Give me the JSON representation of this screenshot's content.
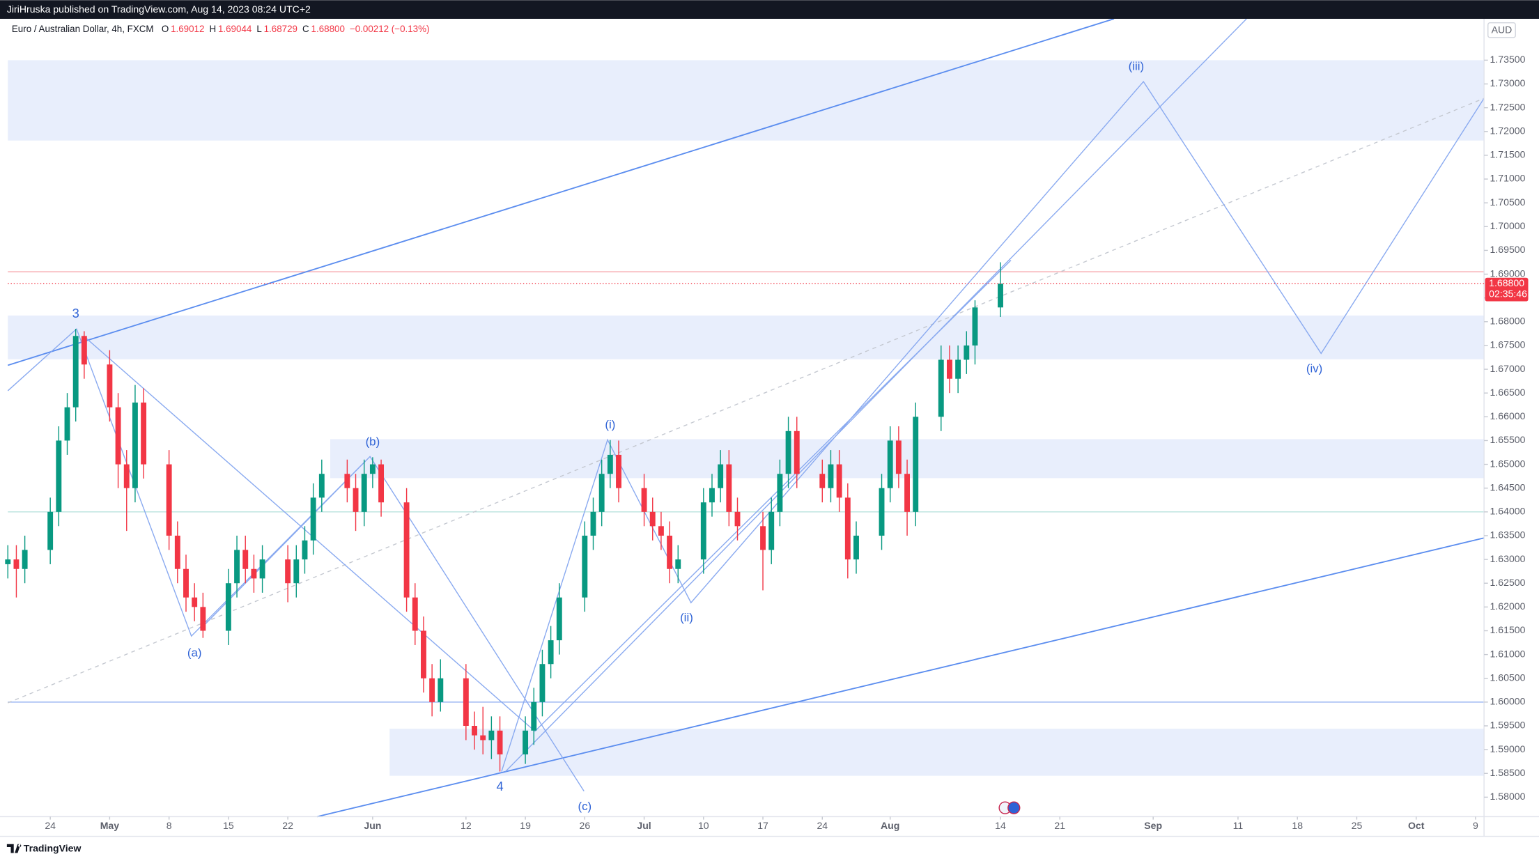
{
  "header": {
    "publisher": "JiriHruska published on TradingView.com, Aug 14, 2023 08:24 UTC+2",
    "brand": "TradingView"
  },
  "chart_data": {
    "type": "candlestick",
    "symbol": "Euro / Australian Dollar, 4h, FXCM",
    "ohlc_legend": {
      "open_label": "O",
      "open": 1.69012,
      "high_label": "H",
      "high": 1.69044,
      "low_label": "L",
      "low": 1.68729,
      "close_label": "C",
      "close": {
        "value": 1.688,
        "label": "1.68800"
      },
      "change": "−0.00212 (−0.13%)"
    },
    "currency": "AUD",
    "last_price": {
      "value": 1.688,
      "label": "1.68800"
    },
    "countdown": "02:35:46",
    "up_color": "#089981",
    "down_color": "#f23645",
    "xlim": [
      "2023-04-19",
      "2023-10-10"
    ],
    "ylim": [
      1.5759,
      1.7437
    ],
    "grid": false,
    "xticks": [
      {
        "value": "2023-04-24",
        "label": "24"
      },
      {
        "value": "2023-05-01",
        "label": "May"
      },
      {
        "value": "2023-05-08",
        "label": "8"
      },
      {
        "value": "2023-05-15",
        "label": "15"
      },
      {
        "value": "2023-05-22",
        "label": "22"
      },
      {
        "value": "2023-06-01",
        "label": "Jun"
      },
      {
        "value": "2023-06-12",
        "label": "12"
      },
      {
        "value": "2023-06-19",
        "label": "19"
      },
      {
        "value": "2023-06-26",
        "label": "26"
      },
      {
        "value": "2023-07-03",
        "label": "Jul"
      },
      {
        "value": "2023-07-10",
        "label": "10"
      },
      {
        "value": "2023-07-17",
        "label": "17"
      },
      {
        "value": "2023-07-24",
        "label": "24"
      },
      {
        "value": "2023-08-01",
        "label": "Aug"
      },
      {
        "value": "2023-08-14",
        "label": "14"
      },
      {
        "value": "2023-08-21",
        "label": "21"
      },
      {
        "value": "2023-09-01",
        "label": "Sep"
      },
      {
        "value": "2023-09-11",
        "label": "11"
      },
      {
        "value": "2023-09-18",
        "label": "18"
      },
      {
        "value": "2023-09-25",
        "label": "25"
      },
      {
        "value": "2023-10-02",
        "label": "Oct"
      },
      {
        "value": "2023-10-09",
        "label": "9"
      }
    ],
    "yticks": [
      {
        "value": 1.58,
        "label": "1.58000"
      },
      {
        "value": 1.585,
        "label": "1.58500"
      },
      {
        "value": 1.59,
        "label": "1.59000"
      },
      {
        "value": 1.595,
        "label": "1.59500"
      },
      {
        "value": 1.6,
        "label": "1.60000"
      },
      {
        "value": 1.605,
        "label": "1.60500"
      },
      {
        "value": 1.61,
        "label": "1.61000"
      },
      {
        "value": 1.615,
        "label": "1.61500"
      },
      {
        "value": 1.62,
        "label": "1.62000"
      },
      {
        "value": 1.625,
        "label": "1.62500"
      },
      {
        "value": 1.63,
        "label": "1.63000"
      },
      {
        "value": 1.635,
        "label": "1.63500"
      },
      {
        "value": 1.64,
        "label": "1.64000"
      },
      {
        "value": 1.645,
        "label": "1.64500"
      },
      {
        "value": 1.65,
        "label": "1.65000"
      },
      {
        "value": 1.655,
        "label": "1.65500"
      },
      {
        "value": 1.66,
        "label": "1.66000"
      },
      {
        "value": 1.665,
        "label": "1.66500"
      },
      {
        "value": 1.67,
        "label": "1.67000"
      },
      {
        "value": 1.675,
        "label": "1.67500"
      },
      {
        "value": 1.68,
        "label": "1.68000"
      },
      {
        "value": 1.685,
        "label": "1.68500"
      },
      {
        "value": 1.69,
        "label": "1.69000"
      },
      {
        "value": 1.695,
        "label": "1.69500"
      },
      {
        "value": 1.7,
        "label": "1.70000"
      },
      {
        "value": 1.705,
        "label": "1.70500"
      },
      {
        "value": 1.71,
        "label": "1.71000"
      },
      {
        "value": 1.715,
        "label": "1.71500"
      },
      {
        "value": 1.72,
        "label": "1.72000"
      },
      {
        "value": 1.725,
        "label": "1.72500"
      },
      {
        "value": 1.73,
        "label": "1.73000"
      },
      {
        "value": 1.735,
        "label": "1.73500"
      }
    ],
    "zones": [
      {
        "low": 1.7181,
        "high": 1.735
      },
      {
        "low": 1.6721,
        "high": 1.6813
      },
      {
        "low": 1.6471,
        "high": 1.6553,
        "from": "2023-05-27"
      },
      {
        "low": 1.5845,
        "high": 1.5944,
        "from": "2023-06-03"
      }
    ],
    "zone_color": "#e8eefc",
    "levels": [
      {
        "value": 1.6,
        "color": "#9db7f2"
      },
      {
        "value": 1.64,
        "color": "#b9e2dd"
      },
      {
        "value": 1.6905,
        "color": "#f7b0b5"
      }
    ],
    "annotations": [
      {
        "text": "3",
        "x": "2023-04-27",
        "y": 1.6785,
        "pos": "above"
      },
      {
        "text": "(a)",
        "x": "2023-05-11",
        "y": 1.6135,
        "pos": "below"
      },
      {
        "text": "(b)",
        "x": "2023-06-01",
        "y": 1.6515,
        "pos": "above"
      },
      {
        "text": "4",
        "x": "2023-06-16",
        "y": 1.5854,
        "pos": "below"
      },
      {
        "text": "(c)",
        "x": "2023-06-26",
        "y": 1.5812,
        "pos": "below"
      },
      {
        "text": "(i)",
        "x": "2023-06-29",
        "y": 1.6551,
        "pos": "above"
      },
      {
        "text": "(ii)",
        "x": "2023-07-08",
        "y": 1.6209,
        "pos": "below"
      },
      {
        "text": "(iii)",
        "x": "2023-08-30",
        "y": 1.7305,
        "pos": "above"
      },
      {
        "text": "(iv)",
        "x": "2023-09-20",
        "y": 1.6733,
        "pos": "below"
      }
    ],
    "candles": [
      [
        "2023-04-19",
        1.629,
        1.633,
        1.626,
        1.63
      ],
      [
        "2023-04-20",
        1.63,
        1.633,
        1.622,
        1.628
      ],
      [
        "2023-04-21",
        1.628,
        1.635,
        1.625,
        1.632
      ],
      [
        "2023-04-24",
        1.632,
        1.643,
        1.629,
        1.64
      ],
      [
        "2023-04-25",
        1.64,
        1.658,
        1.637,
        1.655
      ],
      [
        "2023-04-26",
        1.655,
        1.665,
        1.652,
        1.662
      ],
      [
        "2023-04-27",
        1.662,
        1.6785,
        1.659,
        1.677
      ],
      [
        "2023-04-28",
        1.677,
        1.678,
        1.668,
        1.671
      ],
      [
        "2023-05-01",
        1.671,
        1.674,
        1.659,
        1.662
      ],
      [
        "2023-05-02",
        1.662,
        1.665,
        1.645,
        1.65
      ],
      [
        "2023-05-03",
        1.65,
        1.653,
        1.636,
        1.645
      ],
      [
        "2023-05-04",
        1.645,
        1.6667,
        1.642,
        1.663
      ],
      [
        "2023-05-05",
        1.663,
        1.666,
        1.647,
        1.65
      ],
      [
        "2023-05-08",
        1.65,
        1.653,
        1.632,
        1.635
      ],
      [
        "2023-05-09",
        1.635,
        1.638,
        1.625,
        1.628
      ],
      [
        "2023-05-10",
        1.628,
        1.631,
        1.619,
        1.622
      ],
      [
        "2023-05-11",
        1.622,
        1.625,
        1.617,
        1.62
      ],
      [
        "2023-05-12",
        1.62,
        1.623,
        1.6135,
        1.615
      ],
      [
        "2023-05-15",
        1.615,
        1.628,
        1.612,
        1.625
      ],
      [
        "2023-05-16",
        1.625,
        1.635,
        1.622,
        1.632
      ],
      [
        "2023-05-17",
        1.632,
        1.635,
        1.625,
        1.628
      ],
      [
        "2023-05-18",
        1.628,
        1.631,
        1.623,
        1.626
      ],
      [
        "2023-05-19",
        1.626,
        1.633,
        1.623,
        1.63
      ],
      [
        "2023-05-22",
        1.63,
        1.633,
        1.621,
        1.625
      ],
      [
        "2023-05-23",
        1.625,
        1.633,
        1.622,
        1.63
      ],
      [
        "2023-05-24",
        1.63,
        1.637,
        1.627,
        1.634
      ],
      [
        "2023-05-25",
        1.634,
        1.646,
        1.631,
        1.643
      ],
      [
        "2023-05-26",
        1.643,
        1.651,
        1.64,
        1.648
      ],
      [
        "2023-05-29",
        1.648,
        1.651,
        1.642,
        1.645
      ],
      [
        "2023-05-30",
        1.645,
        1.648,
        1.636,
        1.64
      ],
      [
        "2023-05-31",
        1.64,
        1.651,
        1.637,
        1.648
      ],
      [
        "2023-06-01",
        1.648,
        1.6515,
        1.645,
        1.65
      ],
      [
        "2023-06-02",
        1.65,
        1.651,
        1.639,
        1.642
      ],
      [
        "2023-06-05",
        1.642,
        1.645,
        1.619,
        1.622
      ],
      [
        "2023-06-06",
        1.622,
        1.625,
        1.612,
        1.615
      ],
      [
        "2023-06-07",
        1.615,
        1.618,
        1.602,
        1.605
      ],
      [
        "2023-06-08",
        1.605,
        1.608,
        1.597,
        1.6
      ],
      [
        "2023-06-09",
        1.6,
        1.609,
        1.598,
        1.605
      ],
      [
        "2023-06-12",
        1.605,
        1.608,
        1.592,
        1.595
      ],
      [
        "2023-06-13",
        1.595,
        1.598,
        1.59,
        1.593
      ],
      [
        "2023-06-14",
        1.593,
        1.599,
        1.589,
        1.592
      ],
      [
        "2023-06-15",
        1.592,
        1.597,
        1.588,
        1.594
      ],
      [
        "2023-06-16",
        1.594,
        1.597,
        1.5854,
        1.589
      ],
      [
        "2023-06-19",
        1.589,
        1.597,
        1.587,
        1.594
      ],
      [
        "2023-06-20",
        1.594,
        1.603,
        1.591,
        1.6
      ],
      [
        "2023-06-21",
        1.6,
        1.611,
        1.597,
        1.608
      ],
      [
        "2023-06-22",
        1.608,
        1.616,
        1.605,
        1.613
      ],
      [
        "2023-06-23",
        1.613,
        1.625,
        1.61,
        1.622
      ],
      [
        "2023-06-26",
        1.622,
        1.638,
        1.619,
        1.635
      ],
      [
        "2023-06-27",
        1.635,
        1.643,
        1.632,
        1.64
      ],
      [
        "2023-06-28",
        1.64,
        1.651,
        1.637,
        1.648
      ],
      [
        "2023-06-29",
        1.648,
        1.6551,
        1.645,
        1.652
      ],
      [
        "2023-06-30",
        1.652,
        1.655,
        1.642,
        1.645
      ],
      [
        "2023-07-03",
        1.645,
        1.648,
        1.637,
        1.64
      ],
      [
        "2023-07-04",
        1.64,
        1.643,
        1.634,
        1.637
      ],
      [
        "2023-07-05",
        1.637,
        1.64,
        1.632,
        1.635
      ],
      [
        "2023-07-06",
        1.635,
        1.638,
        1.625,
        1.628
      ],
      [
        "2023-07-07",
        1.628,
        1.633,
        1.625,
        1.63
      ],
      [
        "2023-07-10",
        1.63,
        1.645,
        1.627,
        1.642
      ],
      [
        "2023-07-11",
        1.642,
        1.648,
        1.639,
        1.645
      ],
      [
        "2023-07-12",
        1.645,
        1.653,
        1.642,
        1.65
      ],
      [
        "2023-07-13",
        1.65,
        1.653,
        1.637,
        1.64
      ],
      [
        "2023-07-14",
        1.64,
        1.643,
        1.634,
        1.637
      ],
      [
        "2023-07-17",
        1.637,
        1.64,
        1.6235,
        1.632
      ],
      [
        "2023-07-18",
        1.632,
        1.643,
        1.629,
        1.64
      ],
      [
        "2023-07-19",
        1.64,
        1.651,
        1.637,
        1.648
      ],
      [
        "2023-07-20",
        1.648,
        1.66,
        1.645,
        1.657
      ],
      [
        "2023-07-21",
        1.657,
        1.66,
        1.645,
        1.648
      ],
      [
        "2023-07-24",
        1.648,
        1.651,
        1.642,
        1.645
      ],
      [
        "2023-07-25",
        1.645,
        1.653,
        1.642,
        1.65
      ],
      [
        "2023-07-26",
        1.65,
        1.653,
        1.64,
        1.643
      ],
      [
        "2023-07-27",
        1.643,
        1.646,
        1.626,
        1.63
      ],
      [
        "2023-07-28",
        1.63,
        1.638,
        1.627,
        1.635
      ],
      [
        "2023-07-31",
        1.635,
        1.648,
        1.632,
        1.645
      ],
      [
        "2023-08-01",
        1.645,
        1.658,
        1.642,
        1.655
      ],
      [
        "2023-08-02",
        1.655,
        1.658,
        1.645,
        1.648
      ],
      [
        "2023-08-03",
        1.648,
        1.651,
        1.635,
        1.64
      ],
      [
        "2023-08-04",
        1.64,
        1.663,
        1.637,
        1.66
      ],
      [
        "2023-08-07",
        1.66,
        1.675,
        1.657,
        1.672
      ],
      [
        "2023-08-08",
        1.672,
        1.675,
        1.665,
        1.668
      ],
      [
        "2023-08-09",
        1.668,
        1.675,
        1.665,
        1.672
      ],
      [
        "2023-08-10",
        1.672,
        1.678,
        1.669,
        1.675
      ],
      [
        "2023-08-11",
        1.675,
        1.6845,
        1.671,
        1.683
      ],
      [
        "2023-08-14",
        1.683,
        1.6925,
        1.681,
        1.688
      ]
    ]
  }
}
